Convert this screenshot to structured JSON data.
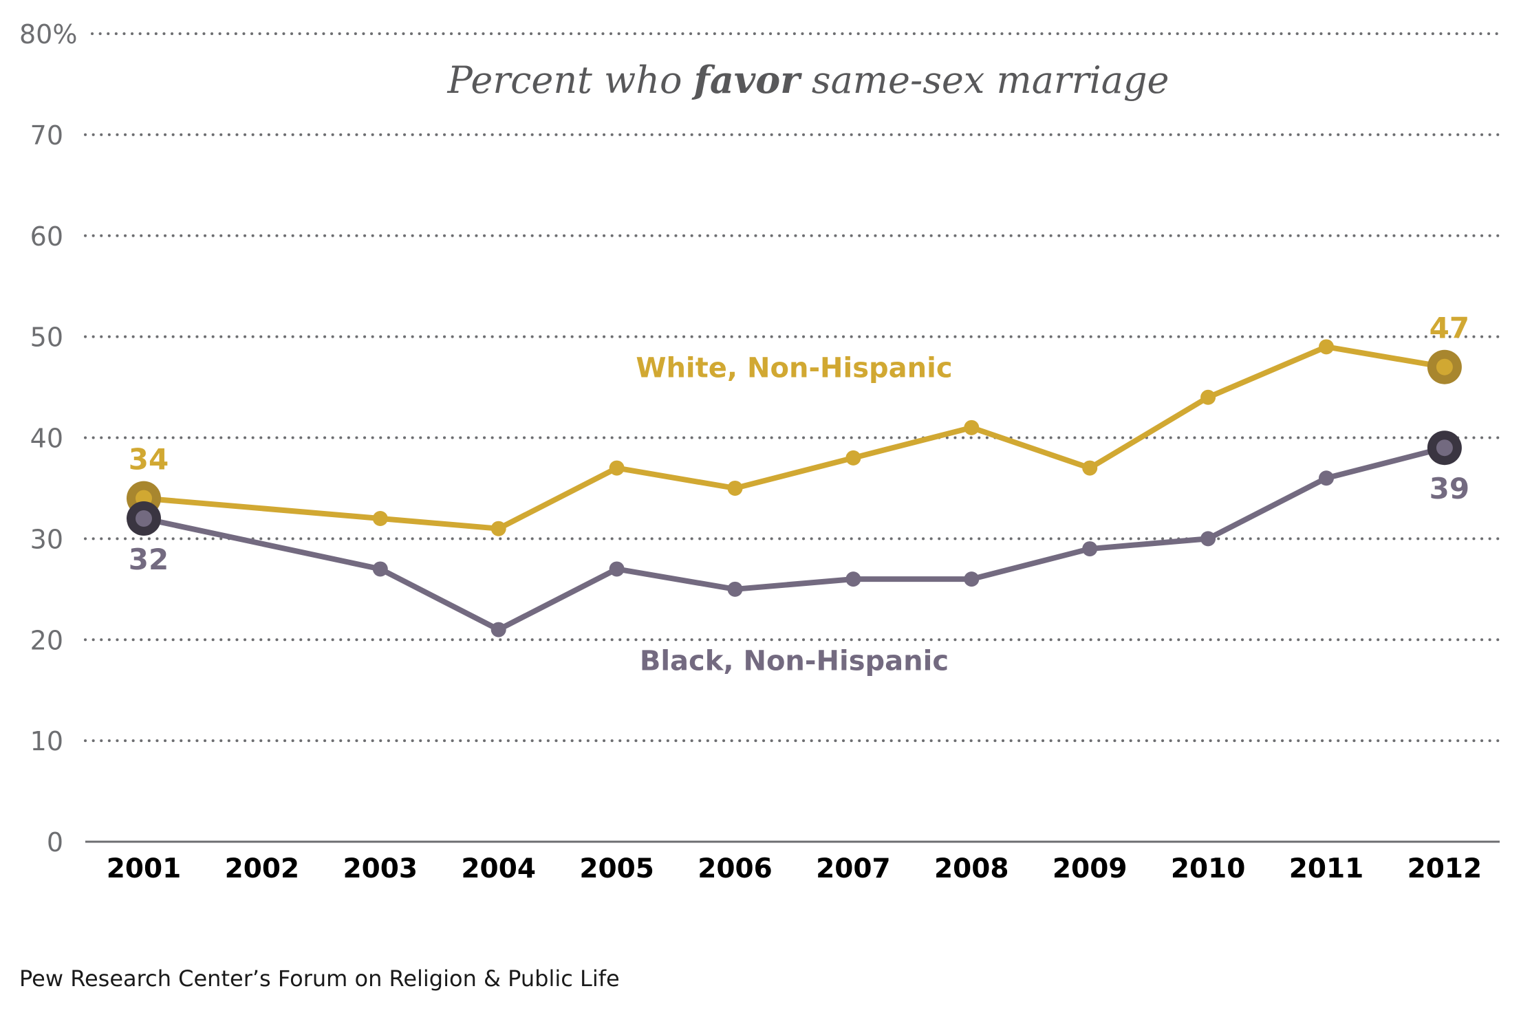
{
  "chart_data": {
    "type": "line",
    "title": "Percent who favor same-sex marriage",
    "title_parts": [
      {
        "text": "Percent who ",
        "emphasis": false
      },
      {
        "text": "favor",
        "emphasis": true
      },
      {
        "text": " same-sex marriage",
        "emphasis": false
      }
    ],
    "xlabel": "",
    "ylabel": "",
    "x": [
      2001,
      2002,
      2003,
      2004,
      2005,
      2006,
      2007,
      2008,
      2009,
      2010,
      2011,
      2012
    ],
    "x_tick_labels": [
      "2001",
      "2002",
      "2003",
      "2004",
      "2005",
      "2006",
      "2007",
      "2008",
      "2009",
      "2010",
      "2011",
      "2012"
    ],
    "y_ticks": [
      0,
      10,
      20,
      30,
      40,
      50,
      60,
      70,
      80
    ],
    "y_tick_labels": [
      "0",
      "10",
      "20",
      "30",
      "40",
      "50",
      "60",
      "70",
      "80%"
    ],
    "ylim": [
      0,
      80
    ],
    "grid": "horizontal-dotted",
    "series": [
      {
        "name": "White, Non-Hispanic",
        "color": "#d1a832",
        "endpoint_ring_color": "#a8862e",
        "x": [
          2001,
          2003,
          2004,
          2005,
          2006,
          2007,
          2008,
          2009,
          2010,
          2011,
          2012
        ],
        "values": [
          34,
          32,
          31,
          37,
          35,
          38,
          41,
          37,
          44,
          49,
          47
        ],
        "labels": [
          {
            "x": 2001,
            "text": "34",
            "position": "above"
          },
          {
            "x": 2012,
            "text": "47",
            "position": "above"
          }
        ],
        "legend_anchor": {
          "x": 2006.5,
          "y": 46
        }
      },
      {
        "name": "Black, Non-Hispanic",
        "color": "#736a80",
        "endpoint_ring_color": "#3a3541",
        "x": [
          2001,
          2003,
          2004,
          2005,
          2006,
          2007,
          2008,
          2009,
          2010,
          2011,
          2012
        ],
        "values": [
          32,
          27,
          21,
          27,
          25,
          26,
          26,
          29,
          30,
          36,
          39
        ],
        "labels": [
          {
            "x": 2001,
            "text": "32",
            "position": "below"
          },
          {
            "x": 2012,
            "text": "39",
            "position": "below"
          }
        ],
        "legend_anchor": {
          "x": 2006.5,
          "y": 17
        }
      }
    ]
  },
  "source": "Pew Research Center’s Forum on Religion & Public Life"
}
